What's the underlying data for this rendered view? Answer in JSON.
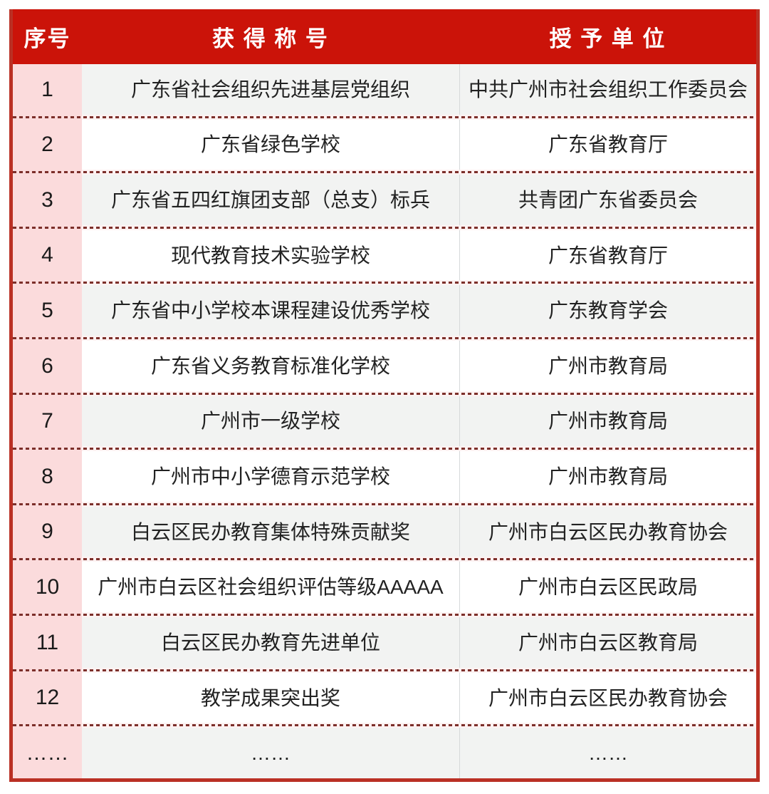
{
  "colors": {
    "header_red": "#cb1309",
    "border_red": "#ba3024",
    "index_column_pink": "#fbdbdc",
    "row_gray": "#f2f3f2",
    "row_white": "#ffffff",
    "separator_dash_red": "#7c2f2a",
    "text": "#222222"
  },
  "table": {
    "header": {
      "no": "序号",
      "title": "获 得 称 号",
      "org": "授 予 单 位"
    },
    "rows": [
      {
        "no": "1",
        "title": "广东省社会组织先进基层党组织",
        "org": "中共广州市社会组织工作委员会"
      },
      {
        "no": "2",
        "title": "广东省绿色学校",
        "org": "广东省教育厅"
      },
      {
        "no": "3",
        "title": "广东省五四红旗团支部（总支）标兵",
        "org": "共青团广东省委员会"
      },
      {
        "no": "4",
        "title": "现代教育技术实验学校",
        "org": "广东省教育厅"
      },
      {
        "no": "5",
        "title": "广东省中小学校本课程建设优秀学校",
        "org": "广东教育学会"
      },
      {
        "no": "6",
        "title": "广东省义务教育标准化学校",
        "org": "广州市教育局"
      },
      {
        "no": "7",
        "title": "广州市一级学校",
        "org": "广州市教育局"
      },
      {
        "no": "8",
        "title": "广州市中小学德育示范学校",
        "org": "广州市教育局"
      },
      {
        "no": "9",
        "title": "白云区民办教育集体特殊贡献奖",
        "org": "广州市白云区民办教育协会"
      },
      {
        "no": "10",
        "title": "广州市白云区社会组织评估等级AAAAA",
        "org": "广州市白云区民政局"
      },
      {
        "no": "11",
        "title": "白云区民办教育先进单位",
        "org": "广州市白云区教育局"
      },
      {
        "no": "12",
        "title": "教学成果突出奖",
        "org": "广州市白云区民办教育协会"
      },
      {
        "no": "……",
        "title": "……",
        "org": "……"
      }
    ]
  }
}
